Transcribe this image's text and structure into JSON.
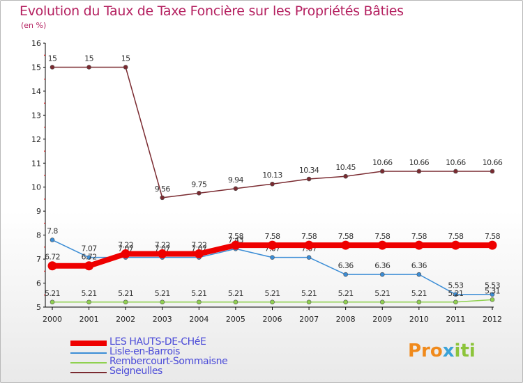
{
  "title": "Evolution du Taux de Taxe Foncière sur les Propriétés Bâties",
  "subtitle": "(en %)",
  "logo": {
    "parts": [
      "Pro",
      "x",
      "iti"
    ],
    "colors": [
      "#f08a1c",
      "#3aa3d8",
      "#8cc43a"
    ]
  },
  "chart_data": {
    "type": "line",
    "x": [
      "2000",
      "2001",
      "2002",
      "2003",
      "2004",
      "2005",
      "2006",
      "2007",
      "2008",
      "2009",
      "2010",
      "2011",
      "2012"
    ],
    "ylim": [
      5,
      16
    ],
    "yticks": [
      "5",
      "6",
      "7",
      "8",
      "9",
      "10",
      "11",
      "12",
      "13",
      "14",
      "15",
      "16"
    ],
    "grid": false,
    "legend_position": "bottom-left",
    "series": [
      {
        "name": "Seigneulles",
        "color": "#7a2a30",
        "values": [
          15,
          15,
          15,
          9.56,
          9.75,
          9.94,
          10.13,
          10.34,
          10.45,
          10.66,
          10.66,
          10.66,
          10.66
        ],
        "labels": [
          "15",
          "15",
          "15",
          "9.56",
          "9.75",
          "9.94",
          "10.13",
          "10.34",
          "10.45",
          "10.66",
          "10.66",
          "10.66",
          "10.66"
        ]
      },
      {
        "name": "Lisle-en-Barrois",
        "color": "#3b8dd6",
        "values": [
          7.8,
          7.07,
          7.07,
          7.07,
          7.07,
          7.43,
          7.07,
          7.07,
          6.36,
          6.36,
          6.36,
          5.53,
          5.53
        ],
        "labels": [
          "7.8",
          "7.07",
          "7.07",
          "7.07",
          "7.07",
          "7.43",
          "7.07",
          "7.07",
          "6.36",
          "6.36",
          "6.36",
          "5.53",
          "5.53"
        ]
      },
      {
        "name": "Rembercourt-Sommaisne",
        "color": "#8fd14f",
        "values": [
          5.21,
          5.21,
          5.21,
          5.21,
          5.21,
          5.21,
          5.21,
          5.21,
          5.21,
          5.21,
          5.21,
          5.21,
          5.31
        ],
        "labels": [
          "5.21",
          "5.21",
          "5.21",
          "5.21",
          "5.21",
          "5.21",
          "5.21",
          "5.21",
          "5.21",
          "5.21",
          "5.21",
          "5.21",
          "5.31"
        ]
      },
      {
        "name": "LES HAUTS-DE-CHéE",
        "color": "#ee0000",
        "values": [
          6.72,
          6.72,
          7.22,
          7.22,
          7.22,
          7.58,
          7.58,
          7.58,
          7.58,
          7.58,
          7.58,
          7.58,
          7.58
        ],
        "labels": [
          "6.72",
          "6.72",
          "7.22",
          "7.22",
          "7.22",
          "7.58",
          "7.58",
          "7.58",
          "7.58",
          "7.58",
          "7.58",
          "7.58",
          "7.58"
        ]
      }
    ],
    "legend": [
      "LES HAUTS-DE-CHéE",
      "Lisle-en-Barrois",
      "Rembercourt-Sommaisne",
      "Seigneulles"
    ]
  }
}
